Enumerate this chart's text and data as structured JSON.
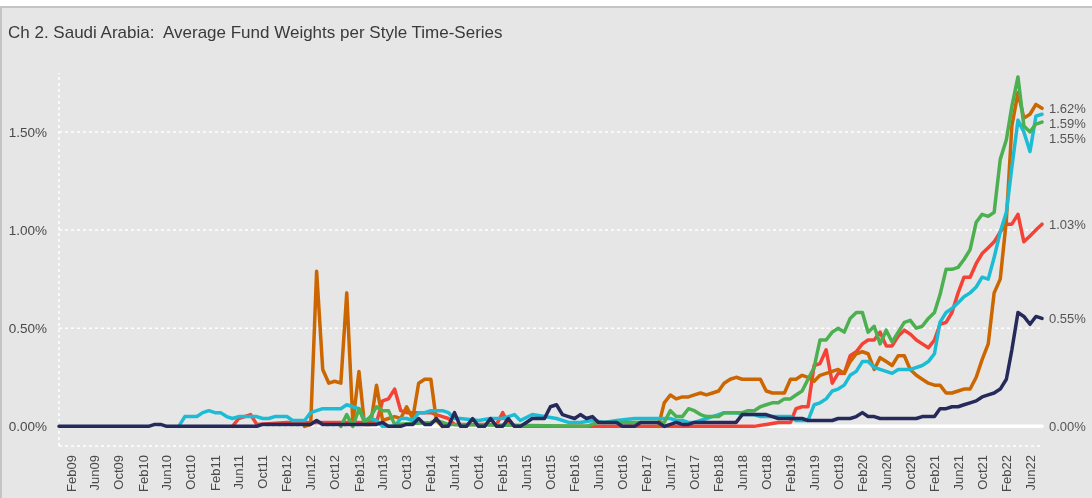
{
  "chart_data": {
    "type": "line",
    "title": "Ch 2. Saudi Arabia:  Average Fund Weights per Style Time-Series",
    "xlim": [
      "2008-12",
      "2022-08"
    ],
    "xticks": [
      {
        "value": "2009-02",
        "label": "Feb09"
      },
      {
        "value": "2009-06",
        "label": "Jun09"
      },
      {
        "value": "2009-10",
        "label": "Oct09"
      },
      {
        "value": "2010-02",
        "label": "Feb10"
      },
      {
        "value": "2010-06",
        "label": "Jun10"
      },
      {
        "value": "2010-10",
        "label": "Oct10"
      },
      {
        "value": "2011-02",
        "label": "Feb11"
      },
      {
        "value": "2011-06",
        "label": "Jun11"
      },
      {
        "value": "2011-10",
        "label": "Oct11"
      },
      {
        "value": "2012-02",
        "label": "Feb12"
      },
      {
        "value": "2012-06",
        "label": "Jun12"
      },
      {
        "value": "2012-10",
        "label": "Oct12"
      },
      {
        "value": "2013-02",
        "label": "Feb13"
      },
      {
        "value": "2013-06",
        "label": "Jun13"
      },
      {
        "value": "2013-10",
        "label": "Oct13"
      },
      {
        "value": "2014-02",
        "label": "Feb14"
      },
      {
        "value": "2014-06",
        "label": "Jun14"
      },
      {
        "value": "2014-10",
        "label": "Oct14"
      },
      {
        "value": "2015-02",
        "label": "Feb15"
      },
      {
        "value": "2015-06",
        "label": "Jun15"
      },
      {
        "value": "2015-10",
        "label": "Oct15"
      },
      {
        "value": "2016-02",
        "label": "Feb16"
      },
      {
        "value": "2016-06",
        "label": "Jun16"
      },
      {
        "value": "2016-10",
        "label": "Oct16"
      },
      {
        "value": "2017-02",
        "label": "Feb17"
      },
      {
        "value": "2017-06",
        "label": "Jun17"
      },
      {
        "value": "2017-10",
        "label": "Oct17"
      },
      {
        "value": "2018-02",
        "label": "Feb18"
      },
      {
        "value": "2018-06",
        "label": "Jun18"
      },
      {
        "value": "2018-10",
        "label": "Oct18"
      },
      {
        "value": "2019-02",
        "label": "Feb19"
      },
      {
        "value": "2019-06",
        "label": "Jun19"
      },
      {
        "value": "2019-10",
        "label": "Oct19"
      },
      {
        "value": "2020-02",
        "label": "Feb20"
      },
      {
        "value": "2020-06",
        "label": "Jun20"
      },
      {
        "value": "2020-10",
        "label": "Oct20"
      },
      {
        "value": "2021-02",
        "label": "Feb21"
      },
      {
        "value": "2021-06",
        "label": "Jun21"
      },
      {
        "value": "2021-10",
        "label": "Oct21"
      },
      {
        "value": "2022-02",
        "label": "Feb22"
      },
      {
        "value": "2022-06",
        "label": "Jun22"
      }
    ],
    "ylim": [
      -0.1,
      1.8
    ],
    "yticks": [
      {
        "value": 0,
        "label": "0.00%"
      },
      {
        "value": 0.5,
        "label": "0.50%"
      },
      {
        "value": 1,
        "label": "1.00%"
      },
      {
        "value": 1.5,
        "label": "1.50%"
      }
    ],
    "grid": "y",
    "series": [
      {
        "color": "#ffffff",
        "x": [
          "2013-03",
          "2022-08"
        ],
        "values": [
          0,
          0
        ]
      },
      {
        "color": "#f44336",
        "x": [
          "2011-05",
          "2011-06",
          "2011-07",
          "2011-08",
          "2011-09",
          "2012-02",
          "2013-02",
          "2013-05",
          "2013-06",
          "2013-07",
          "2013-08",
          "2013-09",
          "2013-10",
          "2013-11",
          "2013-12",
          "2014-01",
          "2014-02",
          "2014-03",
          "2014-04",
          "2014-05",
          "2014-06",
          "2015-01",
          "2015-02",
          "2015-03",
          "2015-05",
          "2018-08",
          "2018-10",
          "2018-12",
          "2019-02",
          "2019-03",
          "2019-04",
          "2019-05",
          "2019-06",
          "2019-07",
          "2019-08",
          "2019-09",
          "2019-10",
          "2019-11",
          "2019-12",
          "2020-01",
          "2020-02",
          "2020-03",
          "2020-04",
          "2020-05",
          "2020-06",
          "2020-07",
          "2020-08",
          "2020-09",
          "2020-10",
          "2020-11",
          "2020-12",
          "2021-01",
          "2021-02",
          "2021-03",
          "2021-04",
          "2021-05",
          "2021-06",
          "2021-07",
          "2021-08",
          "2021-09",
          "2021-10",
          "2021-11",
          "2021-12",
          "2022-01",
          "2022-02",
          "2022-03",
          "2022-04",
          "2022-05",
          "2022-06",
          "2022-07",
          "2022-08"
        ],
        "values": [
          0,
          0.04,
          0.05,
          0.06,
          0.01,
          0.02,
          0.02,
          0.02,
          0.13,
          0.14,
          0.19,
          0.08,
          0.07,
          0.07,
          0.07,
          0.07,
          0.07,
          0.06,
          0.05,
          0.04,
          0.01,
          0.01,
          0.07,
          0.01,
          0,
          0,
          0.01,
          0.02,
          0.02,
          0.09,
          0.1,
          0.1,
          0.31,
          0.32,
          0.39,
          0.22,
          0.27,
          0.27,
          0.36,
          0.38,
          0.42,
          0.44,
          0.44,
          0.48,
          0.41,
          0.41,
          0.46,
          0.49,
          0.47,
          0.44,
          0.42,
          0.4,
          0.44,
          0.52,
          0.53,
          0.58,
          0.68,
          0.76,
          0.76,
          0.83,
          0.88,
          0.91,
          0.94,
          0.99,
          1.03,
          1.03,
          1.08,
          0.94,
          0.97,
          1.0,
          1.03
        ]
      },
      {
        "color": "#cc6600",
        "x": [
          "2012-05",
          "2012-06",
          "2012-07",
          "2012-08",
          "2012-09",
          "2012-10",
          "2012-11",
          "2012-12",
          "2013-01",
          "2013-02",
          "2013-03",
          "2013-04",
          "2013-05",
          "2013-06",
          "2013-07",
          "2013-08",
          "2013-09",
          "2013-10",
          "2013-11",
          "2013-12",
          "2014-01",
          "2014-02",
          "2014-03",
          "2014-04",
          "2015-10",
          "2017-04",
          "2017-05",
          "2017-06",
          "2017-07",
          "2017-08",
          "2017-09",
          "2017-10",
          "2017-11",
          "2017-12",
          "2018-01",
          "2018-02",
          "2018-03",
          "2018-04",
          "2018-05",
          "2018-06",
          "2018-07",
          "2018-08",
          "2018-09",
          "2018-10",
          "2018-11",
          "2018-12",
          "2019-01",
          "2019-02",
          "2019-03",
          "2019-04",
          "2019-05",
          "2019-06",
          "2019-07",
          "2019-08",
          "2019-09",
          "2019-10",
          "2019-11",
          "2019-12",
          "2020-01",
          "2020-02",
          "2020-03",
          "2020-04",
          "2020-05",
          "2020-06",
          "2020-07",
          "2020-08",
          "2020-09",
          "2020-10",
          "2020-11",
          "2020-12",
          "2021-01",
          "2021-02",
          "2021-03",
          "2021-04",
          "2021-05",
          "2021-06",
          "2021-07",
          "2021-08",
          "2021-09",
          "2021-10",
          "2021-11",
          "2021-12",
          "2022-01",
          "2022-02",
          "2022-03",
          "2022-04",
          "2022-05",
          "2022-06",
          "2022-07",
          "2022-08"
        ],
        "values": [
          0,
          0.01,
          0.79,
          0.29,
          0.22,
          0.23,
          0.22,
          0.68,
          0.02,
          0.28,
          0.01,
          0.01,
          0.21,
          0.03,
          0.04,
          0.05,
          0.04,
          0.1,
          0.04,
          0.22,
          0.24,
          0.24,
          0.03,
          0,
          null,
          0,
          0.12,
          0.16,
          0.14,
          0.15,
          0.15,
          0.16,
          0.17,
          0.16,
          0.17,
          0.18,
          0.22,
          0.24,
          0.25,
          0.24,
          0.24,
          0.24,
          0.24,
          0.18,
          0.17,
          0.17,
          0.17,
          0.24,
          0.24,
          0.26,
          0.25,
          0.23,
          0.26,
          0.27,
          0.28,
          0.29,
          0.27,
          0.33,
          0.37,
          0.38,
          0.37,
          0.29,
          0.35,
          0.33,
          0.31,
          0.36,
          0.36,
          0.29,
          0.26,
          0.24,
          0.22,
          0.21,
          0.21,
          0.17,
          0.17,
          0.18,
          0.19,
          0.19,
          0.25,
          0.34,
          0.42,
          0.68,
          0.75,
          1.05,
          1.53,
          1.7,
          1.57,
          1.59,
          1.64,
          1.62
        ]
      },
      {
        "color": "#1cbcd4",
        "x": [
          "2010-08",
          "2010-09",
          "2010-10",
          "2010-11",
          "2010-12",
          "2011-01",
          "2011-02",
          "2011-03",
          "2011-04",
          "2011-05",
          "2011-06",
          "2011-07",
          "2011-08",
          "2011-09",
          "2011-10",
          "2011-11",
          "2011-12",
          "2012-01",
          "2012-02",
          "2012-03",
          "2012-04",
          "2012-05",
          "2012-06",
          "2012-07",
          "2012-08",
          "2012-09",
          "2012-10",
          "2012-11",
          "2012-12",
          "2013-01",
          "2013-02",
          "2013-03",
          "2013-04",
          "2013-05",
          "2013-06",
          "2013-07",
          "2013-08",
          "2013-09",
          "2013-10",
          "2013-11",
          "2013-12",
          "2014-01",
          "2014-02",
          "2014-03",
          "2014-04",
          "2014-05",
          "2014-06",
          "2014-07",
          "2014-10",
          "2014-12",
          "2015-02",
          "2015-04",
          "2015-05",
          "2015-07",
          "2015-09",
          "2015-11",
          "2016-01",
          "2016-03",
          "2016-05",
          "2016-07",
          "2016-09",
          "2016-12",
          "2017-04",
          "2017-05",
          "2017-06",
          "2017-07",
          "2017-08",
          "2017-09",
          "2017-10",
          "2017-11",
          "2017-12",
          "2018-01",
          "2018-02",
          "2018-03",
          "2018-04",
          "2018-05",
          "2018-06",
          "2018-07",
          "2018-08",
          "2018-09",
          "2018-10",
          "2018-11",
          "2018-12",
          "2019-01",
          "2019-02",
          "2019-03",
          "2019-04",
          "2019-05",
          "2019-06",
          "2019-07",
          "2019-08",
          "2019-09",
          "2019-10",
          "2019-11",
          "2019-12",
          "2020-01",
          "2020-02",
          "2020-03",
          "2020-04",
          "2020-05",
          "2020-06",
          "2020-07",
          "2020-08",
          "2020-09",
          "2020-10",
          "2020-11",
          "2020-12",
          "2021-01",
          "2021-02",
          "2021-03",
          "2021-04",
          "2021-05",
          "2021-06",
          "2021-07",
          "2021-08",
          "2021-09",
          "2021-10",
          "2021-11",
          "2021-12",
          "2022-01",
          "2022-02",
          "2022-03",
          "2022-04",
          "2022-05",
          "2022-06",
          "2022-07",
          "2022-08"
        ],
        "values": [
          0,
          0.05,
          0.05,
          0.05,
          0.07,
          0.08,
          0.07,
          0.07,
          0.05,
          0.04,
          0.05,
          0.05,
          0.05,
          0.05,
          0.04,
          0.04,
          0.05,
          0.05,
          0.05,
          0.03,
          0.03,
          0.03,
          0.07,
          0.08,
          0.09,
          0.09,
          0.09,
          0.09,
          0.11,
          0.1,
          0.09,
          0.03,
          0.04,
          0.03,
          0,
          0,
          0,
          0.04,
          0.04,
          0.03,
          0.07,
          0.07,
          0.08,
          0.08,
          0.08,
          0.07,
          0.04,
          0.04,
          0.03,
          0.04,
          0.04,
          0.06,
          0.03,
          0.06,
          0.05,
          0.04,
          0.02,
          0.02,
          0.03,
          0.02,
          0.03,
          0.04,
          0.04,
          0.04,
          0.04,
          0.03,
          0.03,
          0.02,
          0.02,
          0.03,
          0.04,
          0.05,
          0.06,
          0.07,
          0.07,
          0.07,
          0.06,
          0.06,
          0.06,
          0.05,
          0.05,
          0.05,
          0.05,
          0.05,
          0.05,
          0.03,
          0.03,
          0.03,
          0.11,
          0.12,
          0.14,
          0.18,
          0.19,
          0.21,
          0.26,
          0.28,
          0.33,
          0.33,
          0.3,
          0.29,
          0.28,
          0.27,
          0.29,
          0.29,
          0.29,
          0.3,
          0.31,
          0.33,
          0.37,
          0.53,
          0.58,
          0.6,
          0.63,
          0.66,
          0.68,
          0.71,
          0.76,
          0.75,
          0.86,
          0.99,
          1.09,
          1.32,
          1.56,
          1.5,
          1.4,
          1.58,
          1.59
        ]
      },
      {
        "color": "#4caf50",
        "x": [
          "2012-11",
          "2012-12",
          "2013-01",
          "2013-02",
          "2013-03",
          "2013-04",
          "2013-05",
          "2013-06",
          "2013-07",
          "2013-08",
          "2014-02",
          "2014-03",
          "2014-04",
          "2014-05",
          "2016-04",
          "2016-06",
          "2017-04",
          "2017-05",
          "2017-06",
          "2017-07",
          "2017-08",
          "2017-09",
          "2017-10",
          "2017-11",
          "2017-12",
          "2018-01",
          "2018-02",
          "2018-03",
          "2018-04",
          "2018-05",
          "2018-06",
          "2018-07",
          "2018-08",
          "2018-09",
          "2018-10",
          "2018-11",
          "2018-12",
          "2019-01",
          "2019-02",
          "2019-03",
          "2019-04",
          "2019-05",
          "2019-06",
          "2019-07",
          "2019-08",
          "2019-09",
          "2019-10",
          "2019-11",
          "2019-12",
          "2020-01",
          "2020-02",
          "2020-03",
          "2020-04",
          "2020-05",
          "2020-06",
          "2020-07",
          "2020-08",
          "2020-09",
          "2020-10",
          "2020-11",
          "2020-12",
          "2021-01",
          "2021-02",
          "2021-03",
          "2021-04",
          "2021-05",
          "2021-06",
          "2021-07",
          "2021-08",
          "2021-09",
          "2021-10",
          "2021-11",
          "2021-12",
          "2022-01",
          "2022-02",
          "2022-03",
          "2022-04",
          "2022-05",
          "2022-06",
          "2022-07",
          "2022-08"
        ],
        "values": [
          0,
          0.06,
          0,
          0.09,
          0.02,
          0.05,
          0.1,
          0.08,
          0.08,
          0.01,
          0.02,
          0.03,
          0.02,
          0.01,
          0,
          0.02,
          0.02,
          0.02,
          0.08,
          0.05,
          0.05,
          0.09,
          0.08,
          0.06,
          0.05,
          0.05,
          0.05,
          0.07,
          0.07,
          0.07,
          0.07,
          0.08,
          0.08,
          0.1,
          0.11,
          0.12,
          0.12,
          0.14,
          0.14,
          0.16,
          0.18,
          0.24,
          0.3,
          0.44,
          0.44,
          0.48,
          0.5,
          0.48,
          0.55,
          0.58,
          0.58,
          0.48,
          0.51,
          0.42,
          0.49,
          0.43,
          0.48,
          0.53,
          0.54,
          0.5,
          0.51,
          0.55,
          0.58,
          0.67,
          0.8,
          0.8,
          0.81,
          0.85,
          0.9,
          1.04,
          1.08,
          1.07,
          1.09,
          1.36,
          1.46,
          1.63,
          1.78,
          1.53,
          1.5,
          1.54,
          1.55
        ]
      },
      {
        "color": "#262a5a",
        "x": [
          "2008-12",
          "2010-03",
          "2010-04",
          "2010-05",
          "2010-06",
          "2011-09",
          "2011-10",
          "2012-06",
          "2012-07",
          "2012-08",
          "2013-05",
          "2013-06",
          "2013-07",
          "2013-09",
          "2013-10",
          "2013-11",
          "2013-12",
          "2014-01",
          "2014-02",
          "2014-03",
          "2014-04",
          "2014-05",
          "2014-06",
          "2014-07",
          "2014-08",
          "2014-09",
          "2014-10",
          "2014-11",
          "2014-12",
          "2015-01",
          "2015-02",
          "2015-03",
          "2015-04",
          "2015-05",
          "2015-06",
          "2015-07",
          "2015-08",
          "2015-09",
          "2015-10",
          "2015-11",
          "2015-12",
          "2016-01",
          "2016-02",
          "2016-03",
          "2016-04",
          "2016-05",
          "2016-06",
          "2016-07",
          "2016-08",
          "2016-09",
          "2016-10",
          "2016-11",
          "2016-12",
          "2017-01",
          "2017-02",
          "2017-03",
          "2017-04",
          "2017-05",
          "2017-06",
          "2017-07",
          "2017-08",
          "2017-09",
          "2017-10",
          "2017-11",
          "2017-12",
          "2018-01",
          "2018-02",
          "2018-03",
          "2018-04",
          "2018-05",
          "2018-06",
          "2018-07",
          "2018-08",
          "2018-09",
          "2018-10",
          "2018-11",
          "2018-12",
          "2019-01",
          "2019-02",
          "2019-03",
          "2019-04",
          "2019-05",
          "2019-06",
          "2019-07",
          "2019-08",
          "2019-09",
          "2019-10",
          "2019-11",
          "2019-12",
          "2020-01",
          "2020-02",
          "2020-03",
          "2020-04",
          "2020-05",
          "2020-06",
          "2020-07",
          "2020-08",
          "2020-09",
          "2020-10",
          "2020-11",
          "2020-12",
          "2021-01",
          "2021-02",
          "2021-03",
          "2021-04",
          "2021-05",
          "2021-06",
          "2021-07",
          "2021-08",
          "2021-09",
          "2021-10",
          "2021-11",
          "2021-12",
          "2022-01",
          "2022-02",
          "2022-03",
          "2022-04",
          "2022-05",
          "2022-06",
          "2022-07",
          "2022-08"
        ],
        "values": [
          0,
          0,
          0.01,
          0.01,
          0,
          0,
          0.01,
          0.01,
          0.03,
          0.01,
          0.01,
          0.02,
          0,
          0,
          0.01,
          0.01,
          0.04,
          0.01,
          0.01,
          0.04,
          0,
          0,
          0.07,
          0,
          0,
          0.04,
          0,
          0,
          0.04,
          0,
          0,
          0.04,
          0,
          0,
          0.02,
          0.04,
          0.04,
          0.04,
          0.1,
          0.11,
          0.06,
          0.05,
          0.04,
          0.06,
          0.04,
          0.05,
          0.02,
          0.02,
          0.02,
          0.02,
          0,
          0,
          0,
          0.02,
          0.02,
          0.02,
          0.02,
          0,
          0.01,
          0.02,
          0.01,
          0.01,
          0.02,
          0.02,
          0.02,
          0.02,
          0.02,
          0.02,
          0.02,
          0.02,
          0.06,
          0.06,
          0.06,
          0.06,
          0.06,
          0.05,
          0.04,
          0.04,
          0.04,
          0.04,
          0.04,
          0.03,
          0.03,
          0.03,
          0.03,
          0.03,
          0.04,
          0.04,
          0.04,
          0.05,
          0.07,
          0.05,
          0.05,
          0.04,
          0.04,
          0.04,
          0.04,
          0.04,
          0.04,
          0.04,
          0.05,
          0.05,
          0.05,
          0.09,
          0.09,
          0.1,
          0.1,
          0.11,
          0.12,
          0.13,
          0.15,
          0.16,
          0.17,
          0.19,
          0.24,
          0.39,
          0.58,
          0.56,
          0.52,
          0.56,
          0.55
        ]
      }
    ],
    "annotations": [
      {
        "text": "1.62%",
        "x": "2022-08",
        "y": 1.62
      },
      {
        "text": "1.59%",
        "x": "2022-08",
        "y": 1.59
      },
      {
        "text": "1.55%",
        "x": "2022-08",
        "y": 1.55
      },
      {
        "text": "1.03%",
        "x": "2022-08",
        "y": 1.03
      },
      {
        "text": "0.55%",
        "x": "2022-08",
        "y": 0.55
      },
      {
        "text": "0.00%",
        "x": "2022-08",
        "y": 0
      }
    ]
  }
}
